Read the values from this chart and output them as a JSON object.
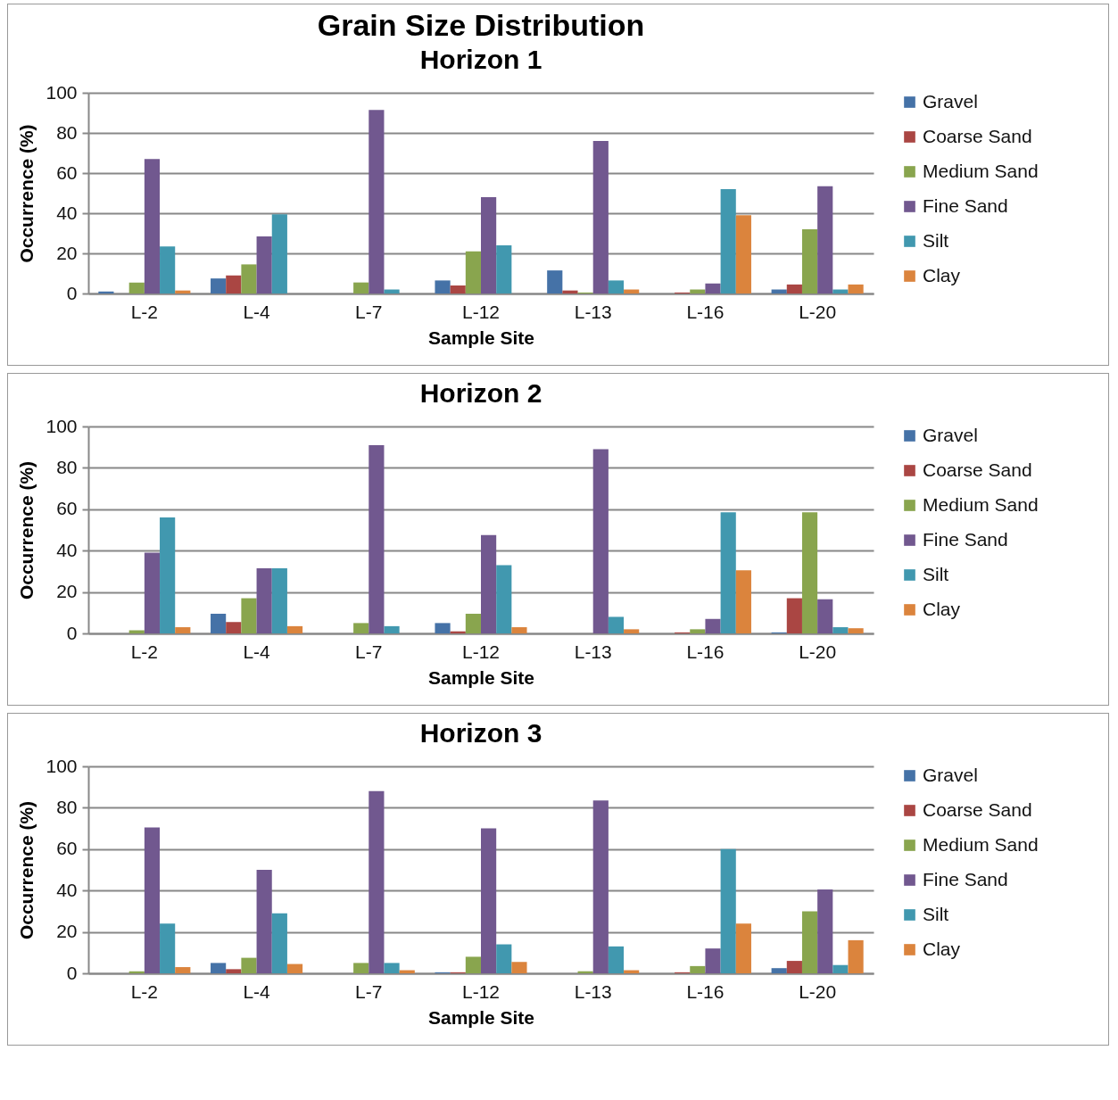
{
  "chart_data": [
    {
      "type": "bar",
      "title": "Grain Size Distribution",
      "subtitle": "Horizon 1",
      "xlabel": "Sample Site",
      "ylabel": "Occurrence (%)",
      "categories": [
        "L-2",
        "L-4",
        "L-7",
        "L-12",
        "L-13",
        "L-16",
        "L-20"
      ],
      "ylim": [
        0,
        100
      ],
      "yticks": [
        0,
        20,
        40,
        60,
        80,
        100
      ],
      "grid": "y",
      "legend": "right",
      "series": [
        {
          "name": "Gravel",
          "color": "#4572a7",
          "values": [
            1,
            7.5,
            0,
            6.5,
            11.5,
            0,
            2
          ]
        },
        {
          "name": "Coarse Sand",
          "color": "#aa4643",
          "values": [
            0,
            9,
            0,
            4,
            1.5,
            0.5,
            4.5
          ]
        },
        {
          "name": "Medium Sand",
          "color": "#89a54e",
          "values": [
            5.5,
            14.5,
            5.5,
            21,
            0.5,
            2,
            32
          ]
        },
        {
          "name": "Fine Sand",
          "color": "#71588f",
          "values": [
            67,
            28.5,
            91.5,
            48,
            76,
            5,
            53.5
          ]
        },
        {
          "name": "Silt",
          "color": "#4198af",
          "values": [
            23.5,
            39.5,
            2,
            24,
            6.5,
            52,
            2
          ]
        },
        {
          "name": "Clay",
          "color": "#db843d",
          "values": [
            1.5,
            0,
            0,
            0,
            2,
            39,
            4.5
          ]
        }
      ]
    },
    {
      "type": "bar",
      "title": "Horizon 2",
      "xlabel": "Sample Site",
      "ylabel": "Occurrence (%)",
      "categories": [
        "L-2",
        "L-4",
        "L-7",
        "L-12",
        "L-13",
        "L-16",
        "L-20"
      ],
      "ylim": [
        0,
        100
      ],
      "yticks": [
        0,
        20,
        40,
        60,
        80,
        100
      ],
      "grid": "y",
      "legend": "right",
      "series": [
        {
          "name": "Gravel",
          "color": "#4572a7",
          "values": [
            0,
            9.5,
            0,
            5,
            0,
            0,
            0.5
          ]
        },
        {
          "name": "Coarse Sand",
          "color": "#aa4643",
          "values": [
            0,
            5.5,
            0,
            1,
            0,
            0.5,
            17
          ]
        },
        {
          "name": "Medium Sand",
          "color": "#89a54e",
          "values": [
            1.5,
            17,
            5,
            9.5,
            0,
            2,
            58.5
          ]
        },
        {
          "name": "Fine Sand",
          "color": "#71588f",
          "values": [
            39,
            31.5,
            91,
            47.5,
            89,
            7,
            16.5
          ]
        },
        {
          "name": "Silt",
          "color": "#4198af",
          "values": [
            56,
            31.5,
            3.5,
            33,
            8,
            58.5,
            3
          ]
        },
        {
          "name": "Clay",
          "color": "#db843d",
          "values": [
            3,
            3.5,
            0,
            3,
            2,
            30.5,
            2.5
          ]
        }
      ]
    },
    {
      "type": "bar",
      "title": "Horizon 3",
      "xlabel": "Sample Site",
      "ylabel": "Occurrence (%)",
      "categories": [
        "L-2",
        "L-4",
        "L-7",
        "L-12",
        "L-13",
        "L-16",
        "L-20"
      ],
      "ylim": [
        0,
        100
      ],
      "yticks": [
        0,
        20,
        40,
        60,
        80,
        100
      ],
      "grid": "y",
      "legend": "right",
      "series": [
        {
          "name": "Gravel",
          "color": "#4572a7",
          "values": [
            0,
            5,
            0,
            0.5,
            0,
            0,
            2.5
          ]
        },
        {
          "name": "Coarse Sand",
          "color": "#aa4643",
          "values": [
            0,
            2,
            0,
            0.5,
            0,
            0.5,
            6
          ]
        },
        {
          "name": "Medium Sand",
          "color": "#89a54e",
          "values": [
            1,
            7.5,
            5,
            8,
            1,
            3.5,
            30
          ]
        },
        {
          "name": "Fine Sand",
          "color": "#71588f",
          "values": [
            70.5,
            50,
            88,
            70,
            83.5,
            12,
            40.5
          ]
        },
        {
          "name": "Silt",
          "color": "#4198af",
          "values": [
            24,
            29,
            5,
            14,
            13,
            60,
            4
          ]
        },
        {
          "name": "Clay",
          "color": "#db843d",
          "values": [
            3,
            4.5,
            1.5,
            5.5,
            1.5,
            24,
            16
          ]
        }
      ]
    }
  ]
}
